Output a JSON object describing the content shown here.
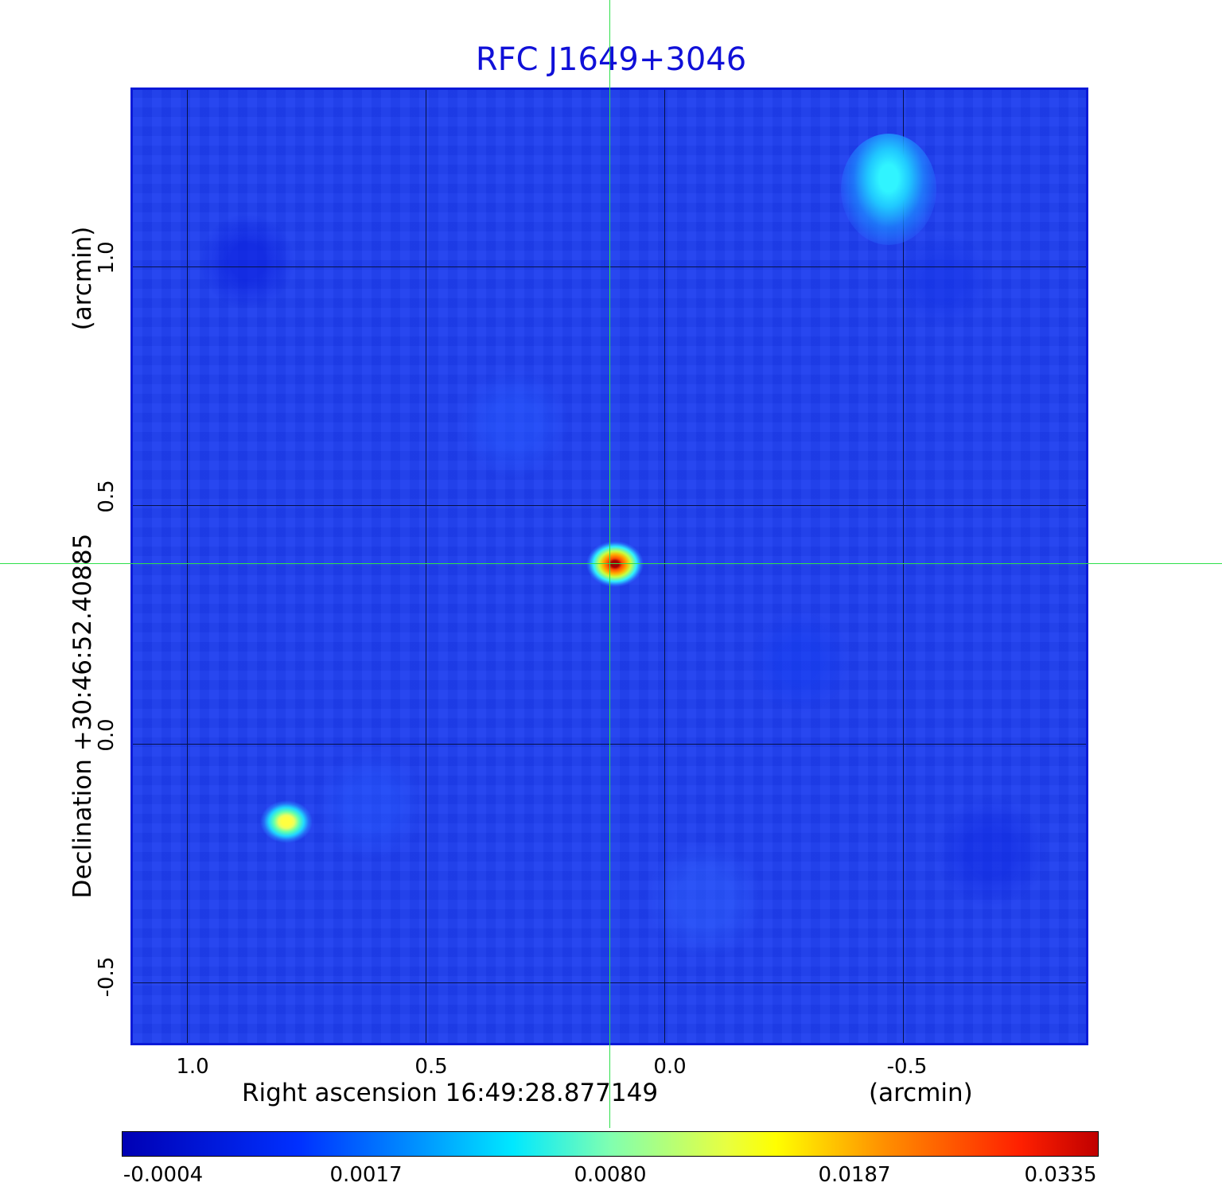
{
  "title": "RFC J1649+3046",
  "x_axis": {
    "label": "Right ascension  16:49:28.877149",
    "unit": "(arcmin)",
    "ticks": [
      "1.0",
      "0.5",
      "0.0",
      "-0.5"
    ]
  },
  "y_axis": {
    "label": "Declination  +30:46:52.40885",
    "unit": "(arcmin)",
    "ticks": [
      "1.0",
      "0.5",
      "0.0",
      "-0.5"
    ]
  },
  "colorbar": {
    "ticks": [
      "-0.0004",
      "0.0017",
      "0.0080",
      "0.0187",
      "0.0335"
    ]
  },
  "colors": {
    "title": "#1010d8",
    "crosshair": "#2ee04a",
    "background_map": "#1f3ff0"
  }
}
